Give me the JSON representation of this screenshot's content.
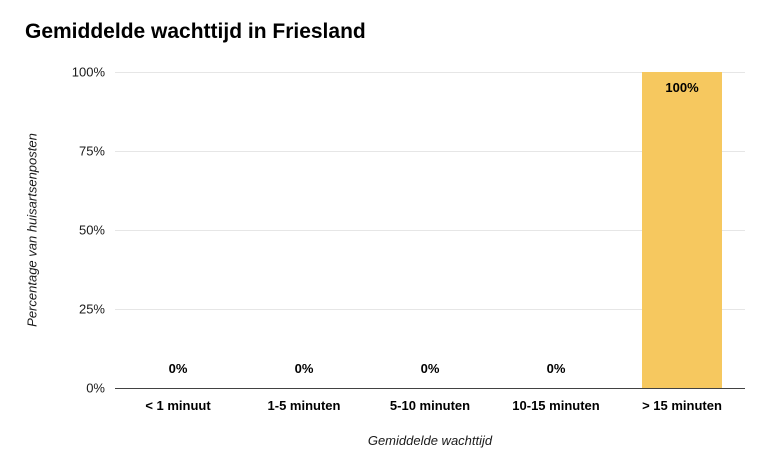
{
  "chart_data": {
    "type": "bar",
    "title": "Gemiddelde wachttijd in Friesland",
    "xlabel": "Gemiddelde wachttijd",
    "ylabel": "Percentage van huisartsenposten",
    "categories": [
      "< 1 minuut",
      "1-5 minuten",
      "5-10 minuten",
      "10-15 minuten",
      "> 15 minuten"
    ],
    "values": [
      0,
      0,
      0,
      0,
      100
    ],
    "value_labels": [
      "0%",
      "0%",
      "0%",
      "0%",
      "100%"
    ],
    "y_ticks": [
      "0%",
      "25%",
      "50%",
      "75%",
      "100%"
    ],
    "ylim": [
      0,
      100
    ],
    "grid": true,
    "legend_position": "none",
    "bar_color": "#f6c85f",
    "gridline_color": "#e6e6e6",
    "baseline_color": "#424242",
    "background_color": "#ffffff",
    "text_color": "#000000"
  }
}
